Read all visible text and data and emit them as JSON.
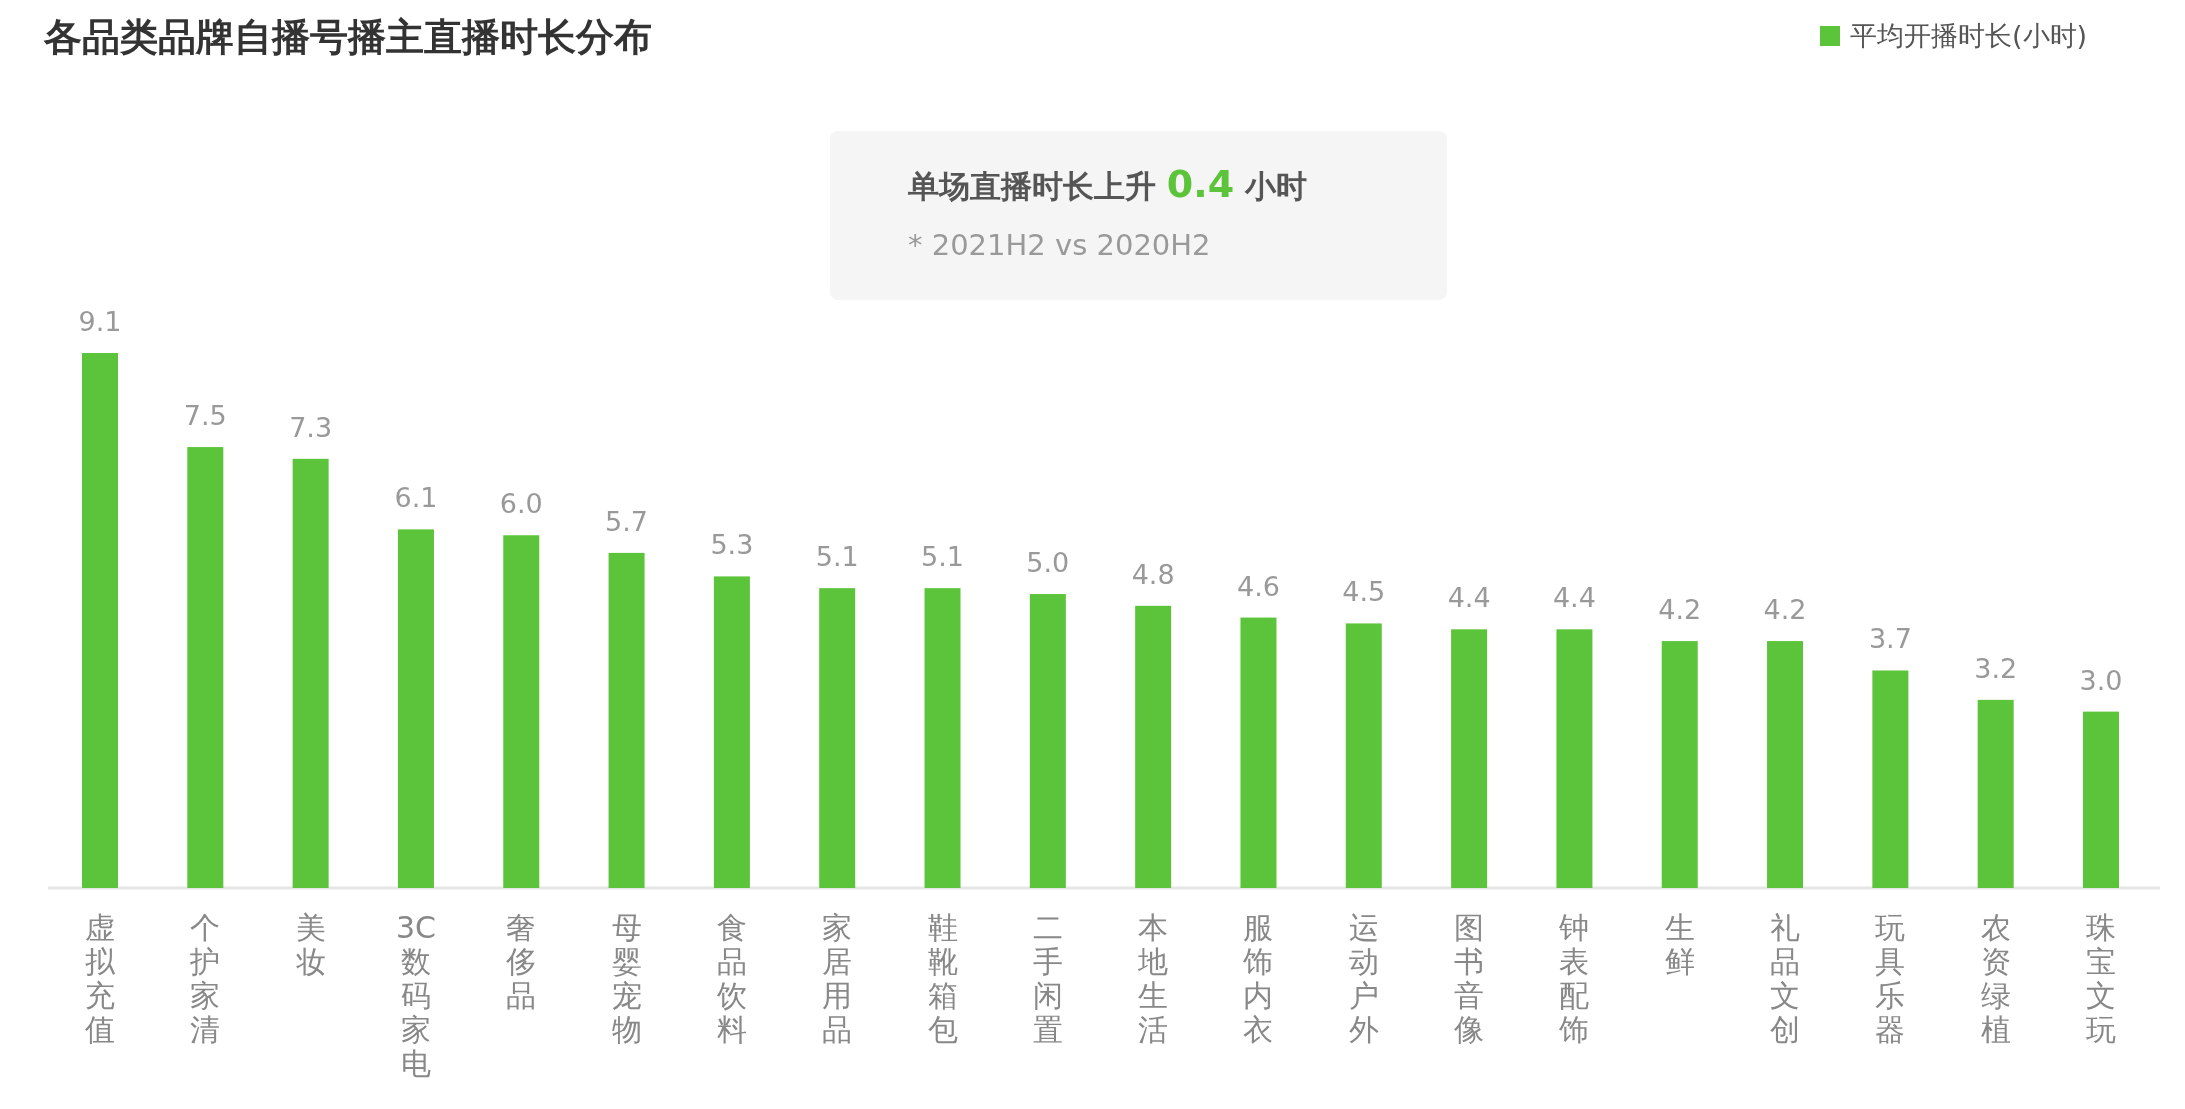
{
  "chart_data": {
    "type": "bar",
    "title": "各品类品牌自播号播主直播时长分布",
    "categories": [
      "虚拟充值",
      "个护家清",
      "美妆",
      "3C数码家电",
      "奢侈品",
      "母婴宠物",
      "食品饮料",
      "家居用品",
      "鞋靴箱包",
      "二手闲置",
      "本地生活",
      "服饰内衣",
      "运动户外",
      "图书音像",
      "钟表配饰",
      "生鲜",
      "礼品文创",
      "玩具乐器",
      "农资绿植",
      "珠宝文玩"
    ],
    "series": [
      {
        "name": "平均开播时长(小时)",
        "color": "#5cc43a",
        "values": [
          9.1,
          7.5,
          7.3,
          6.1,
          6.0,
          5.7,
          5.3,
          5.1,
          5.1,
          5.0,
          4.8,
          4.6,
          4.5,
          4.4,
          4.4,
          4.2,
          4.2,
          3.7,
          3.2,
          3.0
        ],
        "value_labels": [
          "9.1",
          "7.5",
          "7.3",
          "6.1",
          "6.0",
          "5.7",
          "5.3",
          "5.1",
          "5.1",
          "5.0",
          "4.8",
          "4.6",
          "4.5",
          "4.4",
          "4.4",
          "4.2",
          "4.2",
          "3.7",
          "3.2",
          "3.0"
        ]
      }
    ],
    "legend": "top right",
    "annotations": [
      "单场直播时长上升 0.4 小时",
      "* 2021H2 vs 2020H2"
    ]
  }
}
